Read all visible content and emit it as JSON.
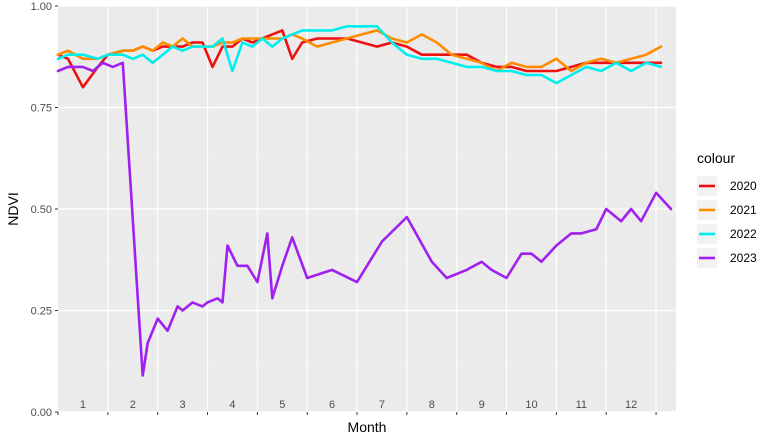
{
  "chart_data": {
    "type": "line",
    "xlabel": "Month",
    "ylabel": "NDVI",
    "x_tick_labels": [
      "1",
      "2",
      "3",
      "4",
      "5",
      "6",
      "7",
      "8",
      "9",
      "10",
      "11",
      "12"
    ],
    "y_tick_labels": [
      "0.00",
      "0.25",
      "0.50",
      "0.75",
      "1.00"
    ],
    "y_ticks": [
      0,
      0.25,
      0.5,
      0.75,
      1.0
    ],
    "xlim": [
      0.5,
      12.9
    ],
    "ylim": [
      0,
      1.0
    ],
    "grid": true,
    "legend": {
      "title": "colour",
      "position": "right"
    },
    "series": [
      {
        "name": "2020",
        "color": "#ee1111",
        "x": [
          0.5,
          0.7,
          1.0,
          1.3,
          1.5,
          1.8,
          2.0,
          2.2,
          2.4,
          2.6,
          2.8,
          3.0,
          3.2,
          3.4,
          3.6,
          3.8,
          4.0,
          4.2,
          4.4,
          4.6,
          4.8,
          5.0,
          5.2,
          5.4,
          5.7,
          6.0,
          6.3,
          6.6,
          6.9,
          7.2,
          7.5,
          7.8,
          8.1,
          8.4,
          8.7,
          9.0,
          9.3,
          9.6,
          9.9,
          10.2,
          10.5,
          10.8,
          11.1,
          11.4,
          11.7,
          12.0,
          12.3,
          12.6
        ],
        "y": [
          0.88,
          0.87,
          0.8,
          0.85,
          0.88,
          0.89,
          0.89,
          0.9,
          0.89,
          0.9,
          0.9,
          0.9,
          0.91,
          0.91,
          0.85,
          0.9,
          0.9,
          0.92,
          0.91,
          0.92,
          0.93,
          0.94,
          0.87,
          0.91,
          0.92,
          0.92,
          0.92,
          0.91,
          0.9,
          0.91,
          0.9,
          0.88,
          0.88,
          0.88,
          0.88,
          0.86,
          0.85,
          0.85,
          0.84,
          0.84,
          0.84,
          0.85,
          0.86,
          0.86,
          0.86,
          0.86,
          0.86,
          0.86
        ]
      },
      {
        "name": "2021",
        "color": "#ff8c00",
        "x": [
          0.5,
          0.7,
          1.0,
          1.3,
          1.5,
          1.8,
          2.0,
          2.2,
          2.4,
          2.6,
          2.8,
          3.0,
          3.2,
          3.4,
          3.6,
          3.8,
          4.0,
          4.2,
          4.4,
          4.6,
          4.8,
          5.0,
          5.2,
          5.4,
          5.7,
          6.0,
          6.3,
          6.6,
          6.9,
          7.2,
          7.5,
          7.8,
          8.1,
          8.4,
          8.7,
          9.0,
          9.3,
          9.6,
          9.9,
          10.2,
          10.5,
          10.8,
          11.1,
          11.4,
          11.7,
          12.0,
          12.3,
          12.6
        ],
        "y": [
          0.88,
          0.89,
          0.87,
          0.87,
          0.88,
          0.89,
          0.89,
          0.9,
          0.89,
          0.91,
          0.9,
          0.92,
          0.9,
          0.9,
          0.9,
          0.91,
          0.91,
          0.92,
          0.92,
          0.92,
          0.92,
          0.92,
          0.93,
          0.92,
          0.9,
          0.91,
          0.92,
          0.93,
          0.94,
          0.92,
          0.91,
          0.93,
          0.91,
          0.88,
          0.87,
          0.86,
          0.84,
          0.86,
          0.85,
          0.85,
          0.87,
          0.84,
          0.86,
          0.87,
          0.86,
          0.87,
          0.88,
          0.9
        ]
      },
      {
        "name": "2022",
        "color": "#00eeee",
        "x": [
          0.5,
          0.7,
          1.0,
          1.3,
          1.5,
          1.8,
          2.0,
          2.2,
          2.4,
          2.6,
          2.8,
          3.0,
          3.2,
          3.4,
          3.6,
          3.8,
          4.0,
          4.2,
          4.4,
          4.6,
          4.8,
          5.0,
          5.2,
          5.4,
          5.7,
          6.0,
          6.3,
          6.6,
          6.9,
          7.2,
          7.5,
          7.8,
          8.1,
          8.4,
          8.7,
          9.0,
          9.3,
          9.6,
          9.9,
          10.2,
          10.5,
          10.8,
          11.1,
          11.4,
          11.7,
          12.0,
          12.3,
          12.6
        ],
        "y": [
          0.87,
          0.88,
          0.88,
          0.87,
          0.88,
          0.88,
          0.87,
          0.88,
          0.86,
          0.88,
          0.9,
          0.89,
          0.9,
          0.9,
          0.9,
          0.92,
          0.84,
          0.91,
          0.9,
          0.92,
          0.9,
          0.92,
          0.93,
          0.94,
          0.94,
          0.94,
          0.95,
          0.95,
          0.95,
          0.91,
          0.88,
          0.87,
          0.87,
          0.86,
          0.85,
          0.85,
          0.84,
          0.84,
          0.83,
          0.83,
          0.81,
          0.83,
          0.85,
          0.84,
          0.86,
          0.84,
          0.86,
          0.85
        ]
      },
      {
        "name": "2023",
        "color": "#a020f0",
        "x": [
          0.5,
          0.7,
          1.0,
          1.2,
          1.4,
          1.6,
          1.8,
          2.2,
          2.3,
          2.5,
          2.7,
          2.9,
          3.0,
          3.2,
          3.4,
          3.5,
          3.7,
          3.8,
          3.9,
          4.1,
          4.3,
          4.5,
          4.7,
          4.8,
          5.0,
          5.2,
          5.5,
          6.0,
          6.5,
          7.0,
          7.5,
          8.0,
          8.3,
          8.7,
          9.0,
          9.2,
          9.5,
          9.8,
          10.0,
          10.2,
          10.5,
          10.8,
          11.0,
          11.3,
          11.5,
          11.8,
          12.0,
          12.2,
          12.5,
          12.8
        ],
        "y": [
          0.84,
          0.85,
          0.85,
          0.84,
          0.86,
          0.85,
          0.86,
          0.09,
          0.17,
          0.23,
          0.2,
          0.26,
          0.25,
          0.27,
          0.26,
          0.27,
          0.28,
          0.27,
          0.41,
          0.36,
          0.36,
          0.32,
          0.44,
          0.28,
          0.36,
          0.43,
          0.33,
          0.35,
          0.32,
          0.42,
          0.48,
          0.37,
          0.33,
          0.35,
          0.37,
          0.35,
          0.33,
          0.39,
          0.39,
          0.37,
          0.41,
          0.44,
          0.44,
          0.45,
          0.5,
          0.47,
          0.5,
          0.47,
          0.54,
          0.5
        ]
      }
    ]
  }
}
